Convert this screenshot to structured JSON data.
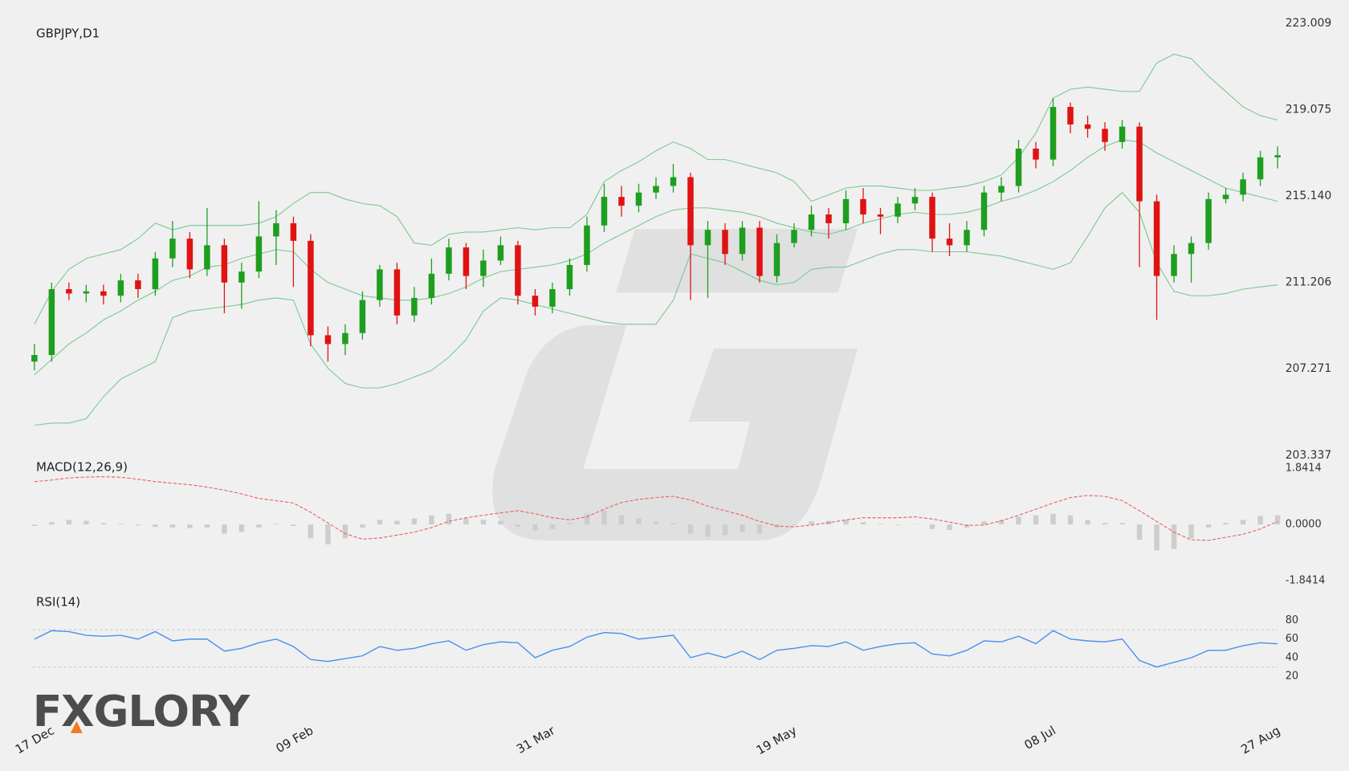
{
  "logo": "FXGLORY",
  "chart_data": [
    {
      "type": "candlestick",
      "title": "GBPJPY,D1",
      "categories": [
        "17 Dec",
        null,
        null,
        null,
        null,
        null,
        null,
        null,
        null,
        null,
        null,
        null,
        null,
        null,
        null,
        "09 Feb",
        null,
        null,
        null,
        null,
        null,
        null,
        null,
        null,
        null,
        null,
        null,
        null,
        null,
        "31 Mar",
        null,
        null,
        null,
        null,
        null,
        null,
        null,
        null,
        null,
        null,
        null,
        null,
        null,
        "19 May",
        null,
        null,
        null,
        null,
        null,
        null,
        null,
        null,
        null,
        null,
        null,
        null,
        null,
        null,
        "08 Jul",
        null,
        null,
        null,
        null,
        null,
        null,
        null,
        null,
        null,
        null,
        null,
        null,
        "27 Aug",
        null
      ],
      "open": [
        207.6,
        207.9,
        210.9,
        210.7,
        210.8,
        210.6,
        211.3,
        210.9,
        212.3,
        213.2,
        211.8,
        212.9,
        211.2,
        211.7,
        213.3,
        213.9,
        213.1,
        208.8,
        208.4,
        208.9,
        210.4,
        211.8,
        209.7,
        210.5,
        211.6,
        212.8,
        211.5,
        212.2,
        212.9,
        210.6,
        210.1,
        210.9,
        212.0,
        213.8,
        215.1,
        214.7,
        215.3,
        215.6,
        216.0,
        212.9,
        213.6,
        212.5,
        213.7,
        211.5,
        213.0,
        213.6,
        214.3,
        213.9,
        215.0,
        214.3,
        214.2,
        214.8,
        215.1,
        213.2,
        212.9,
        213.6,
        215.3,
        215.6,
        217.3,
        216.8,
        219.2,
        218.4,
        218.2,
        217.6,
        218.3,
        214.9,
        211.5,
        212.5,
        213.0,
        215.0,
        215.2,
        215.9,
        216.9
      ],
      "high": [
        208.4,
        211.2,
        211.2,
        211.1,
        211.1,
        211.6,
        211.6,
        212.6,
        214.0,
        213.5,
        214.6,
        213.2,
        212.1,
        214.9,
        214.5,
        214.2,
        213.4,
        209.2,
        209.3,
        210.8,
        212.0,
        212.1,
        211.0,
        212.3,
        213.2,
        213.0,
        212.7,
        213.3,
        213.1,
        210.9,
        211.2,
        212.3,
        214.2,
        215.7,
        215.6,
        215.7,
        216.0,
        216.6,
        216.2,
        214.0,
        213.9,
        214.0,
        214.0,
        213.4,
        213.9,
        214.7,
        214.6,
        215.4,
        215.5,
        214.6,
        215.1,
        215.5,
        215.3,
        213.9,
        214.0,
        215.6,
        216.0,
        217.7,
        217.6,
        219.6,
        219.4,
        218.8,
        218.5,
        218.6,
        218.5,
        215.2,
        212.9,
        213.3,
        215.3,
        215.5,
        216.2,
        217.2,
        217.4
      ],
      "low": [
        207.2,
        207.6,
        210.4,
        210.3,
        210.2,
        210.3,
        210.5,
        210.6,
        211.9,
        211.4,
        211.5,
        209.8,
        210.0,
        211.4,
        212.0,
        211.0,
        208.3,
        207.6,
        207.9,
        208.6,
        210.1,
        209.3,
        209.4,
        210.2,
        211.3,
        210.9,
        211.0,
        212.0,
        210.2,
        209.7,
        209.8,
        210.6,
        211.7,
        213.5,
        214.2,
        214.4,
        215.0,
        215.3,
        210.4,
        210.5,
        212.0,
        212.2,
        211.2,
        211.2,
        212.8,
        213.3,
        213.2,
        213.6,
        213.9,
        213.4,
        213.9,
        214.5,
        212.6,
        212.4,
        212.6,
        213.3,
        214.9,
        215.3,
        216.4,
        216.5,
        218.0,
        217.8,
        217.2,
        217.3,
        211.9,
        209.5,
        211.2,
        211.2,
        212.7,
        214.8,
        214.9,
        215.6,
        216.4
      ],
      "close": [
        207.9,
        210.9,
        210.7,
        210.8,
        210.6,
        211.3,
        210.9,
        212.3,
        213.2,
        211.8,
        212.9,
        211.2,
        211.7,
        213.3,
        213.9,
        213.1,
        208.8,
        208.4,
        208.9,
        210.4,
        211.8,
        209.7,
        210.5,
        211.6,
        212.8,
        211.5,
        212.2,
        212.9,
        210.6,
        210.1,
        210.9,
        212.0,
        213.8,
        215.1,
        214.7,
        215.3,
        215.6,
        216.0,
        212.9,
        213.6,
        212.5,
        213.7,
        211.5,
        213.0,
        213.6,
        214.3,
        213.9,
        215.0,
        214.3,
        214.2,
        214.8,
        215.1,
        213.2,
        212.9,
        213.6,
        215.3,
        215.6,
        217.3,
        216.8,
        219.2,
        218.4,
        218.2,
        217.6,
        218.3,
        214.9,
        211.5,
        212.5,
        213.0,
        215.0,
        215.2,
        215.9,
        216.9,
        217.0
      ],
      "up_color": "#1e9e1e",
      "down_color": "#e01212",
      "series": [
        {
          "color": "#78c890",
          "values": [
            209.3,
            210.8,
            211.8,
            212.3,
            212.5,
            212.7,
            213.2,
            213.9,
            213.6,
            213.8,
            213.8,
            213.8,
            213.8,
            213.9,
            214.2,
            214.8,
            215.3,
            215.3,
            215.0,
            214.8,
            214.7,
            214.2,
            213.0,
            212.9,
            213.4,
            213.5,
            213.5,
            213.6,
            213.7,
            213.6,
            213.7,
            213.7,
            214.3,
            215.8,
            216.3,
            216.7,
            217.2,
            217.6,
            217.3,
            216.8,
            216.8,
            216.6,
            216.4,
            216.2,
            215.8,
            214.9,
            215.2,
            215.5,
            215.6,
            215.6,
            215.5,
            215.4,
            215.4,
            215.5,
            215.6,
            215.8,
            216.1,
            216.9,
            218.0,
            219.6,
            220.0,
            220.1,
            220.0,
            219.9,
            219.9,
            221.2,
            221.6,
            221.4,
            220.6,
            219.9,
            219.2,
            218.8,
            218.6
          ]
        },
        {
          "color": "#78c890",
          "values": [
            207.0,
            207.7,
            208.4,
            208.9,
            209.5,
            209.9,
            210.4,
            210.8,
            211.3,
            211.5,
            211.9,
            212.0,
            212.3,
            212.5,
            212.7,
            212.6,
            211.8,
            211.2,
            210.9,
            210.6,
            210.5,
            210.4,
            210.4,
            210.5,
            210.7,
            211.0,
            211.4,
            211.7,
            211.8,
            211.9,
            212.0,
            212.2,
            212.5,
            213.0,
            213.4,
            213.8,
            214.2,
            214.5,
            214.6,
            214.6,
            214.5,
            214.4,
            214.2,
            213.9,
            213.7,
            213.5,
            213.4,
            213.6,
            213.9,
            214.1,
            214.3,
            214.4,
            214.3,
            214.3,
            214.4,
            214.6,
            214.9,
            215.1,
            215.4,
            215.8,
            216.3,
            216.9,
            217.4,
            217.7,
            217.6,
            217.1,
            216.7,
            216.3,
            215.9,
            215.5,
            215.3,
            215.1,
            214.9
          ]
        },
        {
          "color": "#78c890",
          "values": [
            204.7,
            204.8,
            204.8,
            205.0,
            206.0,
            206.8,
            207.2,
            207.6,
            209.6,
            209.9,
            210.0,
            210.1,
            210.2,
            210.4,
            210.5,
            210.4,
            208.4,
            207.3,
            206.6,
            206.4,
            206.4,
            206.6,
            206.9,
            207.2,
            207.8,
            208.6,
            209.9,
            210.5,
            210.4,
            210.2,
            210.0,
            209.8,
            209.6,
            209.4,
            209.3,
            209.3,
            209.3,
            210.4,
            212.5,
            212.3,
            212.1,
            211.7,
            211.3,
            211.1,
            211.2,
            211.8,
            211.9,
            211.9,
            212.2,
            212.5,
            212.7,
            212.7,
            212.6,
            212.6,
            212.6,
            212.5,
            212.4,
            212.2,
            212.0,
            211.8,
            212.1,
            213.3,
            214.6,
            215.3,
            214.4,
            212.1,
            210.8,
            210.6,
            210.6,
            210.7,
            210.9,
            211.0,
            211.1
          ]
        }
      ],
      "ylim": [
        203.337,
        223.009
      ],
      "yticks": [
        223.009,
        219.075,
        {
          "value": 215.14,
          "label": "215.140"
        },
        211.206,
        207.271,
        203.337
      ]
    },
    {
      "type": "macd",
      "title": "MACD(12,26,9)",
      "histogram": [
        -0.05,
        0.08,
        0.15,
        0.12,
        0.05,
        0.02,
        -0.03,
        -0.08,
        -0.1,
        -0.12,
        -0.1,
        -0.3,
        -0.25,
        -0.1,
        0.02,
        -0.05,
        -0.45,
        -0.65,
        -0.45,
        -0.1,
        0.15,
        0.12,
        0.2,
        0.3,
        0.35,
        0.2,
        0.15,
        0.12,
        -0.08,
        -0.2,
        -0.15,
        0.05,
        0.35,
        0.45,
        0.3,
        0.2,
        0.1,
        0.05,
        -0.3,
        -0.4,
        -0.35,
        -0.25,
        -0.3,
        -0.1,
        -0.02,
        0.1,
        0.12,
        0.15,
        0.08,
        0.02,
        -0.02,
        0.01,
        -0.15,
        -0.18,
        -0.1,
        0.1,
        0.15,
        0.25,
        0.3,
        0.35,
        0.3,
        0.15,
        0.05,
        0.05,
        -0.5,
        -0.85,
        -0.8,
        -0.45,
        -0.1,
        0.05,
        0.15,
        0.28,
        0.3
      ],
      "signal": [
        1.4,
        1.45,
        1.52,
        1.55,
        1.56,
        1.54,
        1.48,
        1.4,
        1.35,
        1.3,
        1.22,
        1.12,
        1.0,
        0.85,
        0.78,
        0.7,
        0.4,
        0.05,
        -0.3,
        -0.48,
        -0.44,
        -0.35,
        -0.25,
        -0.1,
        0.1,
        0.22,
        0.3,
        0.38,
        0.45,
        0.35,
        0.22,
        0.15,
        0.25,
        0.5,
        0.72,
        0.82,
        0.88,
        0.92,
        0.8,
        0.6,
        0.45,
        0.3,
        0.1,
        -0.05,
        -0.08,
        -0.02,
        0.06,
        0.15,
        0.22,
        0.22,
        0.22,
        0.25,
        0.18,
        0.08,
        -0.03,
        -0.02,
        0.12,
        0.3,
        0.5,
        0.7,
        0.88,
        0.95,
        0.92,
        0.78,
        0.45,
        0.1,
        -0.25,
        -0.5,
        -0.52,
        -0.42,
        -0.32,
        -0.15,
        0.1
      ],
      "histogram_color": "#cdcdcd",
      "signal_color": "#ee5a5a",
      "ylim": [
        -1.8414,
        1.8414
      ],
      "yticks": [
        1.8414,
        {
          "value": 0,
          "label": "0.0000"
        },
        -1.8414
      ]
    },
    {
      "type": "line",
      "title": "RSI(14)",
      "values": [
        60,
        69,
        68,
        64,
        63,
        64,
        60,
        68,
        58,
        60,
        60,
        47,
        50,
        56,
        60,
        52,
        38,
        36,
        39,
        42,
        52,
        48,
        50,
        55,
        58,
        48,
        54,
        57,
        56,
        40,
        48,
        52,
        62,
        67,
        66,
        60,
        62,
        64,
        40,
        45,
        40,
        47,
        38,
        48,
        50,
        53,
        52,
        57,
        48,
        52,
        55,
        56,
        44,
        42,
        48,
        58,
        57,
        63,
        55,
        69,
        60,
        58,
        57,
        60,
        37,
        30,
        35,
        40,
        48,
        48,
        53,
        56,
        55
      ],
      "color": "#4a8ff0",
      "levels": [
        70,
        30
      ],
      "ylim": [
        10,
        90
      ],
      "yticks": [
        80,
        60,
        40,
        20
      ]
    }
  ]
}
